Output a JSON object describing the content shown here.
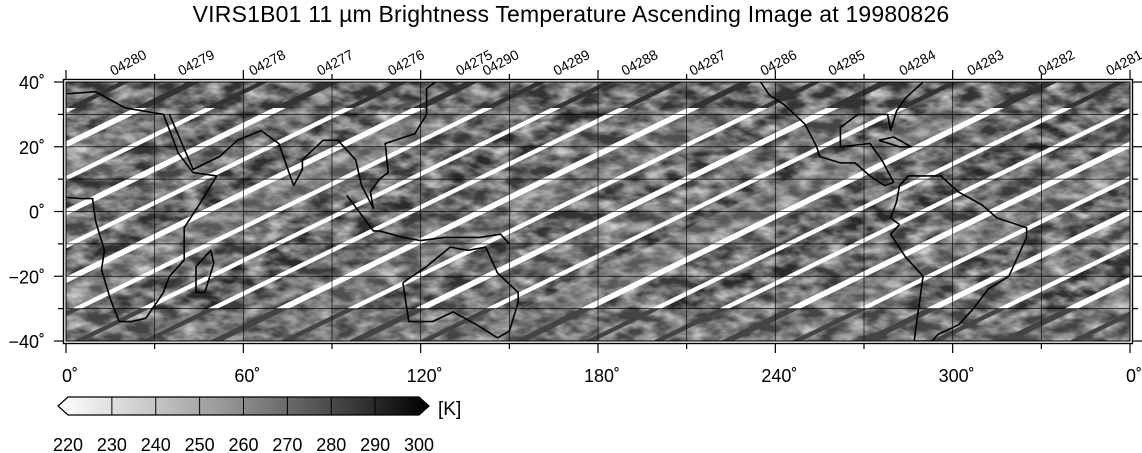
{
  "title": "VIRS1B01 11 µm Brightness Temperature Ascending Image at 19980826",
  "orbits": [
    {
      "label": "04280",
      "lon": 16
    },
    {
      "label": "04279",
      "lon": 39
    },
    {
      "label": "04278",
      "lon": 63
    },
    {
      "label": "04277",
      "lon": 86
    },
    {
      "label": "04276",
      "lon": 110
    },
    {
      "label": "04275",
      "lon": 133
    },
    {
      "label": "04290",
      "lon": 142
    },
    {
      "label": "04289",
      "lon": 166
    },
    {
      "label": "04288",
      "lon": 189
    },
    {
      "label": "04287",
      "lon": 212
    },
    {
      "label": "04286",
      "lon": 236
    },
    {
      "label": "04285",
      "lon": 259
    },
    {
      "label": "04284",
      "lon": 283
    },
    {
      "label": "04283",
      "lon": 306
    },
    {
      "label": "04282",
      "lon": 330
    },
    {
      "label": "04281",
      "lon": 353
    }
  ],
  "lat_ticks": [
    {
      "value": 40,
      "label": "40˚"
    },
    {
      "value": 20,
      "label": "20˚"
    },
    {
      "value": 0,
      "label": "0˚"
    },
    {
      "value": -20,
      "label": "−20˚"
    },
    {
      "value": -40,
      "label": "−40˚"
    }
  ],
  "lon_ticks": [
    {
      "value": 0,
      "label": "0˚"
    },
    {
      "value": 60,
      "label": "60˚"
    },
    {
      "value": 120,
      "label": "120˚"
    },
    {
      "value": 180,
      "label": "180˚"
    },
    {
      "value": 240,
      "label": "240˚"
    },
    {
      "value": 300,
      "label": "300˚"
    },
    {
      "value": 360,
      "label": "0˚"
    }
  ],
  "colorbar": {
    "unit": "[K]",
    "min": 220,
    "max": 300,
    "ticks": [
      "220",
      "230",
      "240",
      "250",
      "260",
      "270",
      "280",
      "290",
      "300"
    ],
    "color_low": "#ffffff",
    "color_high": "#000000"
  },
  "chart_data": {
    "type": "heatmap",
    "title": "VIRS1B01 11 µm Brightness Temperature Ascending Image at 19980826",
    "xlim": [
      0,
      360
    ],
    "ylim": [
      -40,
      40
    ],
    "grid": true,
    "value_range": [
      220,
      300
    ],
    "value_unit": "[K]",
    "colormap": "white-to-black (inverted gray)"
  }
}
